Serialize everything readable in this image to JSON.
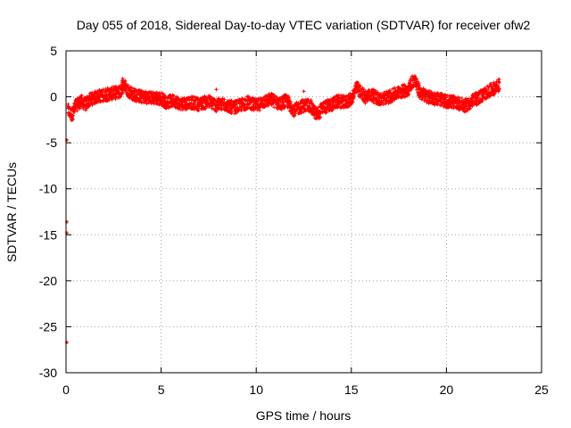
{
  "chart_data": {
    "type": "scatter",
    "title": "Day 055 of 2018, Sidereal Day-to-day VTEC variation (SDTVAR) for receiver ofw2",
    "xlabel": "GPS time / hours",
    "ylabel": "SDTVAR / TECUs",
    "xlim": [
      0,
      25
    ],
    "ylim": [
      -30,
      5
    ],
    "xticks": [
      0,
      5,
      10,
      15,
      20,
      25
    ],
    "yticks": [
      -30,
      -25,
      -20,
      -15,
      -10,
      -5,
      0,
      5
    ],
    "grid": true,
    "marker_color": "#ff0000",
    "series": [
      {
        "name": "SDTVAR",
        "trace": [
          [
            0.1,
            -1.5
          ],
          [
            0.3,
            -2.0
          ],
          [
            0.5,
            -1.0
          ],
          [
            0.8,
            -0.5
          ],
          [
            1.0,
            -0.8
          ],
          [
            1.3,
            -0.3
          ],
          [
            1.6,
            0.0
          ],
          [
            2.0,
            0.2
          ],
          [
            2.5,
            0.4
          ],
          [
            2.9,
            0.6
          ],
          [
            3.0,
            1.5
          ],
          [
            3.2,
            0.8
          ],
          [
            3.6,
            0.2
          ],
          [
            4.0,
            0.0
          ],
          [
            4.5,
            -0.1
          ],
          [
            5.0,
            -0.2
          ],
          [
            5.3,
            -0.6
          ],
          [
            5.7,
            -0.4
          ],
          [
            6.0,
            -0.8
          ],
          [
            6.5,
            -0.6
          ],
          [
            7.0,
            -0.8
          ],
          [
            7.5,
            -0.5
          ],
          [
            7.9,
            -0.9
          ],
          [
            8.3,
            -0.8
          ],
          [
            8.8,
            -1.2
          ],
          [
            9.2,
            -0.9
          ],
          [
            9.6,
            -0.6
          ],
          [
            10.0,
            -1.0
          ],
          [
            10.4,
            -0.5
          ],
          [
            10.8,
            -0.3
          ],
          [
            11.2,
            -0.8
          ],
          [
            11.6,
            -0.4
          ],
          [
            12.0,
            -1.5
          ],
          [
            12.4,
            -1.0
          ],
          [
            12.8,
            -0.9
          ],
          [
            13.2,
            -2.0
          ],
          [
            13.5,
            -1.2
          ],
          [
            13.9,
            -0.9
          ],
          [
            14.3,
            -0.5
          ],
          [
            14.7,
            -0.6
          ],
          [
            15.0,
            -0.2
          ],
          [
            15.3,
            1.0
          ],
          [
            15.7,
            0.0
          ],
          [
            16.1,
            0.2
          ],
          [
            16.5,
            -0.3
          ],
          [
            17.0,
            0.0
          ],
          [
            17.5,
            0.5
          ],
          [
            18.0,
            0.8
          ],
          [
            18.3,
            2.0
          ],
          [
            18.6,
            0.5
          ],
          [
            19.0,
            0.0
          ],
          [
            19.5,
            -0.2
          ],
          [
            20.0,
            -0.5
          ],
          [
            20.5,
            -0.6
          ],
          [
            21.0,
            -1.0
          ],
          [
            21.5,
            -0.3
          ],
          [
            22.0,
            0.3
          ],
          [
            22.4,
            0.8
          ],
          [
            22.8,
            1.3
          ]
        ],
        "outliers": [
          [
            0.05,
            -4.7
          ],
          [
            0.05,
            -13.6
          ],
          [
            0.05,
            -14.8
          ],
          [
            0.05,
            -26.7
          ],
          [
            7.9,
            0.8
          ],
          [
            7.9,
            -1.6
          ],
          [
            12.5,
            0.6
          ]
        ]
      }
    ]
  }
}
